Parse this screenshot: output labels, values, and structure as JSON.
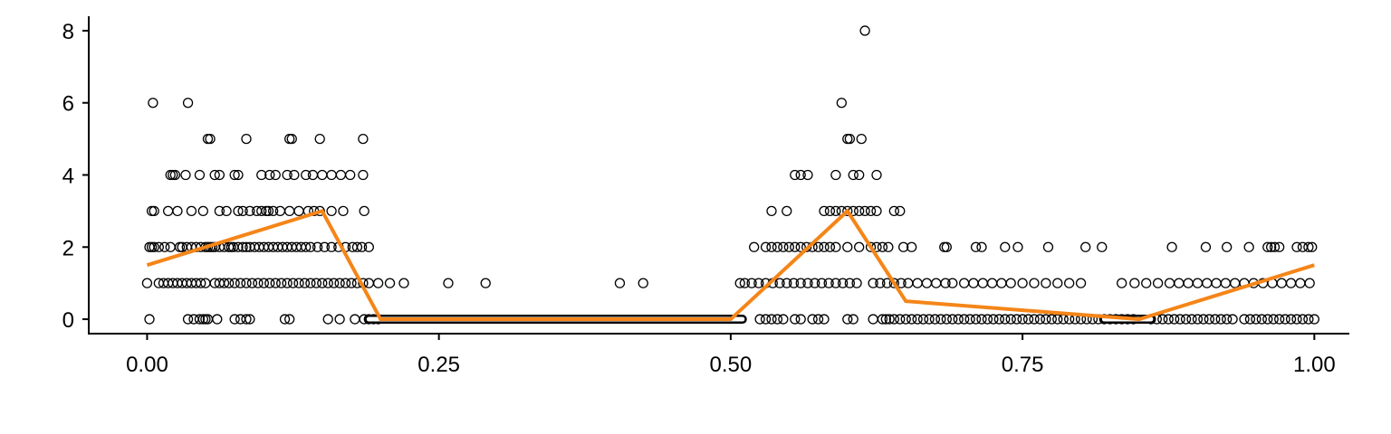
{
  "chart_data": {
    "type": "scatter",
    "title": "",
    "xlabel": "",
    "ylabel": "",
    "xlim": [
      -0.05,
      1.03
    ],
    "ylim": [
      -0.4,
      8.4
    ],
    "grid": false,
    "x_ticks": [
      {
        "value": 0.0,
        "label": "0.00"
      },
      {
        "value": 0.25,
        "label": "0.25"
      },
      {
        "value": 0.5,
        "label": "0.50"
      },
      {
        "value": 0.75,
        "label": "0.75"
      },
      {
        "value": 1.0,
        "label": "1.00"
      }
    ],
    "y_ticks": [
      {
        "value": 0,
        "label": "0"
      },
      {
        "value": 2,
        "label": "2"
      },
      {
        "value": 4,
        "label": "4"
      },
      {
        "value": 6,
        "label": "6"
      },
      {
        "value": 8,
        "label": "8"
      }
    ],
    "colors": {
      "points": "#000000",
      "line": "#F58518",
      "axis": "#000000"
    },
    "points": [
      [
        0.005,
        6
      ],
      [
        0.035,
        6
      ],
      [
        0.052,
        5
      ],
      [
        0.054,
        5
      ],
      [
        0.085,
        5
      ],
      [
        0.122,
        5
      ],
      [
        0.124,
        5
      ],
      [
        0.148,
        5
      ],
      [
        0.185,
        5
      ],
      [
        0.02,
        4
      ],
      [
        0.022,
        4
      ],
      [
        0.024,
        4
      ],
      [
        0.033,
        4
      ],
      [
        0.045,
        4
      ],
      [
        0.058,
        4
      ],
      [
        0.062,
        4
      ],
      [
        0.075,
        4
      ],
      [
        0.078,
        4
      ],
      [
        0.098,
        4
      ],
      [
        0.105,
        4
      ],
      [
        0.11,
        4
      ],
      [
        0.12,
        4
      ],
      [
        0.126,
        4
      ],
      [
        0.136,
        4
      ],
      [
        0.142,
        4
      ],
      [
        0.15,
        4
      ],
      [
        0.158,
        4
      ],
      [
        0.166,
        4
      ],
      [
        0.174,
        4
      ],
      [
        0.185,
        4
      ],
      [
        0.004,
        3
      ],
      [
        0.006,
        3
      ],
      [
        0.018,
        3
      ],
      [
        0.026,
        3
      ],
      [
        0.038,
        3
      ],
      [
        0.048,
        3
      ],
      [
        0.062,
        3
      ],
      [
        0.068,
        3
      ],
      [
        0.078,
        3
      ],
      [
        0.082,
        3
      ],
      [
        0.088,
        3
      ],
      [
        0.094,
        3
      ],
      [
        0.098,
        3
      ],
      [
        0.102,
        3
      ],
      [
        0.104,
        3
      ],
      [
        0.108,
        3
      ],
      [
        0.114,
        3
      ],
      [
        0.122,
        3
      ],
      [
        0.13,
        3
      ],
      [
        0.138,
        3
      ],
      [
        0.143,
        3
      ],
      [
        0.148,
        3
      ],
      [
        0.158,
        3
      ],
      [
        0.168,
        3
      ],
      [
        0.186,
        3
      ],
      [
        0.002,
        2
      ],
      [
        0.004,
        2
      ],
      [
        0.006,
        2
      ],
      [
        0.01,
        2
      ],
      [
        0.015,
        2
      ],
      [
        0.02,
        2
      ],
      [
        0.028,
        2
      ],
      [
        0.03,
        2
      ],
      [
        0.034,
        2
      ],
      [
        0.038,
        2
      ],
      [
        0.042,
        2
      ],
      [
        0.046,
        2
      ],
      [
        0.05,
        2
      ],
      [
        0.052,
        2
      ],
      [
        0.054,
        2
      ],
      [
        0.056,
        2
      ],
      [
        0.058,
        2
      ],
      [
        0.062,
        2
      ],
      [
        0.066,
        2
      ],
      [
        0.07,
        2
      ],
      [
        0.072,
        2
      ],
      [
        0.074,
        2
      ],
      [
        0.078,
        2
      ],
      [
        0.082,
        2
      ],
      [
        0.085,
        2
      ],
      [
        0.088,
        2
      ],
      [
        0.092,
        2
      ],
      [
        0.096,
        2
      ],
      [
        0.1,
        2
      ],
      [
        0.104,
        2
      ],
      [
        0.108,
        2
      ],
      [
        0.112,
        2
      ],
      [
        0.116,
        2
      ],
      [
        0.12,
        2
      ],
      [
        0.124,
        2
      ],
      [
        0.128,
        2
      ],
      [
        0.132,
        2
      ],
      [
        0.136,
        2
      ],
      [
        0.14,
        2
      ],
      [
        0.146,
        2
      ],
      [
        0.152,
        2
      ],
      [
        0.158,
        2
      ],
      [
        0.164,
        2
      ],
      [
        0.17,
        2
      ],
      [
        0.176,
        2
      ],
      [
        0.18,
        2
      ],
      [
        0.184,
        2
      ],
      [
        0.19,
        2
      ],
      [
        0.0,
        1
      ],
      [
        0.01,
        1
      ],
      [
        0.014,
        1
      ],
      [
        0.018,
        1
      ],
      [
        0.022,
        1
      ],
      [
        0.026,
        1
      ],
      [
        0.03,
        1
      ],
      [
        0.034,
        1
      ],
      [
        0.038,
        1
      ],
      [
        0.042,
        1
      ],
      [
        0.046,
        1
      ],
      [
        0.05,
        1
      ],
      [
        0.058,
        1
      ],
      [
        0.062,
        1
      ],
      [
        0.066,
        1
      ],
      [
        0.07,
        1
      ],
      [
        0.075,
        1
      ],
      [
        0.08,
        1
      ],
      [
        0.085,
        1
      ],
      [
        0.09,
        1
      ],
      [
        0.095,
        1
      ],
      [
        0.1,
        1
      ],
      [
        0.105,
        1
      ],
      [
        0.11,
        1
      ],
      [
        0.115,
        1
      ],
      [
        0.12,
        1
      ],
      [
        0.125,
        1
      ],
      [
        0.13,
        1
      ],
      [
        0.135,
        1
      ],
      [
        0.14,
        1
      ],
      [
        0.145,
        1
      ],
      [
        0.15,
        1
      ],
      [
        0.155,
        1
      ],
      [
        0.16,
        1
      ],
      [
        0.165,
        1
      ],
      [
        0.17,
        1
      ],
      [
        0.175,
        1
      ],
      [
        0.18,
        1
      ],
      [
        0.185,
        1
      ],
      [
        0.19,
        1
      ],
      [
        0.198,
        1
      ],
      [
        0.208,
        1
      ],
      [
        0.22,
        1
      ],
      [
        0.258,
        1
      ],
      [
        0.29,
        1
      ],
      [
        0.405,
        1
      ],
      [
        0.425,
        1
      ],
      [
        0.002,
        0
      ],
      [
        0.035,
        0
      ],
      [
        0.04,
        0
      ],
      [
        0.045,
        0
      ],
      [
        0.048,
        0
      ],
      [
        0.05,
        0
      ],
      [
        0.052,
        0
      ],
      [
        0.06,
        0
      ],
      [
        0.075,
        0
      ],
      [
        0.08,
        0
      ],
      [
        0.085,
        0
      ],
      [
        0.088,
        0
      ],
      [
        0.118,
        0
      ],
      [
        0.122,
        0
      ],
      [
        0.155,
        0
      ],
      [
        0.165,
        0
      ],
      [
        0.178,
        0
      ],
      [
        0.186,
        0
      ],
      [
        0.19,
        0
      ],
      [
        0.194,
        0
      ],
      [
        0.198,
        0
      ],
      [
        0.615,
        8
      ],
      [
        0.595,
        6
      ],
      [
        0.6,
        5
      ],
      [
        0.602,
        5
      ],
      [
        0.612,
        5
      ],
      [
        0.555,
        4
      ],
      [
        0.56,
        4
      ],
      [
        0.566,
        4
      ],
      [
        0.59,
        4
      ],
      [
        0.605,
        4
      ],
      [
        0.61,
        4
      ],
      [
        0.625,
        4
      ],
      [
        0.535,
        3
      ],
      [
        0.548,
        3
      ],
      [
        0.58,
        3
      ],
      [
        0.585,
        3
      ],
      [
        0.59,
        3
      ],
      [
        0.595,
        3
      ],
      [
        0.6,
        3
      ],
      [
        0.605,
        3
      ],
      [
        0.61,
        3
      ],
      [
        0.615,
        3
      ],
      [
        0.62,
        3
      ],
      [
        0.625,
        3
      ],
      [
        0.64,
        3
      ],
      [
        0.645,
        3
      ],
      [
        0.52,
        2
      ],
      [
        0.53,
        2
      ],
      [
        0.535,
        2
      ],
      [
        0.54,
        2
      ],
      [
        0.545,
        2
      ],
      [
        0.55,
        2
      ],
      [
        0.555,
        2
      ],
      [
        0.56,
        2
      ],
      [
        0.565,
        2
      ],
      [
        0.57,
        2
      ],
      [
        0.575,
        2
      ],
      [
        0.58,
        2
      ],
      [
        0.585,
        2
      ],
      [
        0.59,
        2
      ],
      [
        0.6,
        2
      ],
      [
        0.61,
        2
      ],
      [
        0.62,
        2
      ],
      [
        0.625,
        2
      ],
      [
        0.63,
        2
      ],
      [
        0.635,
        2
      ],
      [
        0.648,
        2
      ],
      [
        0.655,
        2
      ],
      [
        0.683,
        2
      ],
      [
        0.685,
        2
      ],
      [
        0.71,
        2
      ],
      [
        0.715,
        2
      ],
      [
        0.735,
        2
      ],
      [
        0.746,
        2
      ],
      [
        0.772,
        2
      ],
      [
        0.804,
        2
      ],
      [
        0.818,
        2
      ],
      [
        0.878,
        2
      ],
      [
        0.907,
        2
      ],
      [
        0.925,
        2
      ],
      [
        0.944,
        2
      ],
      [
        0.96,
        2
      ],
      [
        0.963,
        2
      ],
      [
        0.966,
        2
      ],
      [
        0.97,
        2
      ],
      [
        0.985,
        2
      ],
      [
        0.99,
        2
      ],
      [
        0.995,
        2
      ],
      [
        0.998,
        2
      ],
      [
        0.508,
        1
      ],
      [
        0.512,
        1
      ],
      [
        0.518,
        1
      ],
      [
        0.524,
        1
      ],
      [
        0.53,
        1
      ],
      [
        0.536,
        1
      ],
      [
        0.542,
        1
      ],
      [
        0.548,
        1
      ],
      [
        0.554,
        1
      ],
      [
        0.56,
        1
      ],
      [
        0.566,
        1
      ],
      [
        0.572,
        1
      ],
      [
        0.578,
        1
      ],
      [
        0.584,
        1
      ],
      [
        0.59,
        1
      ],
      [
        0.596,
        1
      ],
      [
        0.602,
        1
      ],
      [
        0.608,
        1
      ],
      [
        0.622,
        1
      ],
      [
        0.628,
        1
      ],
      [
        0.634,
        1
      ],
      [
        0.64,
        1
      ],
      [
        0.646,
        1
      ],
      [
        0.652,
        1
      ],
      [
        0.66,
        1
      ],
      [
        0.668,
        1
      ],
      [
        0.676,
        1
      ],
      [
        0.684,
        1
      ],
      [
        0.69,
        1
      ],
      [
        0.7,
        1
      ],
      [
        0.708,
        1
      ],
      [
        0.716,
        1
      ],
      [
        0.724,
        1
      ],
      [
        0.732,
        1
      ],
      [
        0.74,
        1
      ],
      [
        0.75,
        1
      ],
      [
        0.76,
        1
      ],
      [
        0.77,
        1
      ],
      [
        0.78,
        1
      ],
      [
        0.79,
        1
      ],
      [
        0.8,
        1
      ],
      [
        0.835,
        1
      ],
      [
        0.846,
        1
      ],
      [
        0.856,
        1
      ],
      [
        0.866,
        1
      ],
      [
        0.876,
        1
      ],
      [
        0.884,
        1
      ],
      [
        0.892,
        1
      ],
      [
        0.9,
        1
      ],
      [
        0.908,
        1
      ],
      [
        0.916,
        1
      ],
      [
        0.924,
        1
      ],
      [
        0.932,
        1
      ],
      [
        0.94,
        1
      ],
      [
        0.948,
        1
      ],
      [
        0.956,
        1
      ],
      [
        0.964,
        1
      ],
      [
        0.972,
        1
      ],
      [
        0.98,
        1
      ],
      [
        0.988,
        1
      ],
      [
        0.996,
        1
      ],
      [
        0.525,
        0
      ],
      [
        0.53,
        0
      ],
      [
        0.535,
        0
      ],
      [
        0.54,
        0
      ],
      [
        0.545,
        0
      ],
      [
        0.555,
        0
      ],
      [
        0.56,
        0
      ],
      [
        0.57,
        0
      ],
      [
        0.575,
        0
      ],
      [
        0.58,
        0
      ],
      [
        0.6,
        0
      ],
      [
        0.605,
        0
      ],
      [
        0.622,
        0
      ],
      [
        0.63,
        0
      ],
      [
        0.633,
        0
      ],
      [
        0.636,
        0
      ],
      [
        0.64,
        0
      ],
      [
        0.645,
        0
      ],
      [
        0.65,
        0
      ],
      [
        0.655,
        0
      ],
      [
        0.66,
        0
      ],
      [
        0.665,
        0
      ],
      [
        0.67,
        0
      ],
      [
        0.675,
        0
      ],
      [
        0.68,
        0
      ],
      [
        0.685,
        0
      ],
      [
        0.69,
        0
      ],
      [
        0.695,
        0
      ],
      [
        0.7,
        0
      ],
      [
        0.705,
        0
      ],
      [
        0.71,
        0
      ],
      [
        0.715,
        0
      ],
      [
        0.72,
        0
      ],
      [
        0.725,
        0
      ],
      [
        0.73,
        0
      ],
      [
        0.735,
        0
      ],
      [
        0.74,
        0
      ],
      [
        0.745,
        0
      ],
      [
        0.75,
        0
      ],
      [
        0.755,
        0
      ],
      [
        0.76,
        0
      ],
      [
        0.765,
        0
      ],
      [
        0.77,
        0
      ],
      [
        0.775,
        0
      ],
      [
        0.78,
        0
      ],
      [
        0.785,
        0
      ],
      [
        0.79,
        0
      ],
      [
        0.795,
        0
      ],
      [
        0.8,
        0
      ],
      [
        0.805,
        0
      ],
      [
        0.81,
        0
      ],
      [
        0.815,
        0
      ],
      [
        0.82,
        0
      ],
      [
        0.825,
        0
      ],
      [
        0.83,
        0
      ],
      [
        0.835,
        0
      ],
      [
        0.84,
        0
      ],
      [
        0.845,
        0
      ],
      [
        0.86,
        0
      ],
      [
        0.865,
        0
      ],
      [
        0.87,
        0
      ],
      [
        0.875,
        0
      ],
      [
        0.88,
        0
      ],
      [
        0.885,
        0
      ],
      [
        0.89,
        0
      ],
      [
        0.895,
        0
      ],
      [
        0.9,
        0
      ],
      [
        0.905,
        0
      ],
      [
        0.91,
        0
      ],
      [
        0.915,
        0
      ],
      [
        0.92,
        0
      ],
      [
        0.925,
        0
      ],
      [
        0.93,
        0
      ],
      [
        0.94,
        0
      ],
      [
        0.945,
        0
      ],
      [
        0.95,
        0
      ],
      [
        0.955,
        0
      ],
      [
        0.96,
        0
      ],
      [
        0.965,
        0
      ],
      [
        0.97,
        0
      ],
      [
        0.975,
        0
      ],
      [
        0.98,
        0
      ],
      [
        0.985,
        0
      ],
      [
        0.99,
        0
      ],
      [
        0.995,
        0
      ],
      [
        1.0,
        0
      ]
    ],
    "zero_band": [
      {
        "x_start": 0.19,
        "x_end": 0.51,
        "y": 0
      },
      {
        "x_start": 0.82,
        "x_end": 0.86,
        "y": 0
      }
    ],
    "trend_line": {
      "x": [
        0.0,
        0.15,
        0.2,
        0.5,
        0.6,
        0.65,
        0.85,
        1.0
      ],
      "y": [
        1.5,
        3.0,
        0.0,
        0.0,
        3.0,
        0.5,
        0.0,
        1.5
      ]
    }
  }
}
